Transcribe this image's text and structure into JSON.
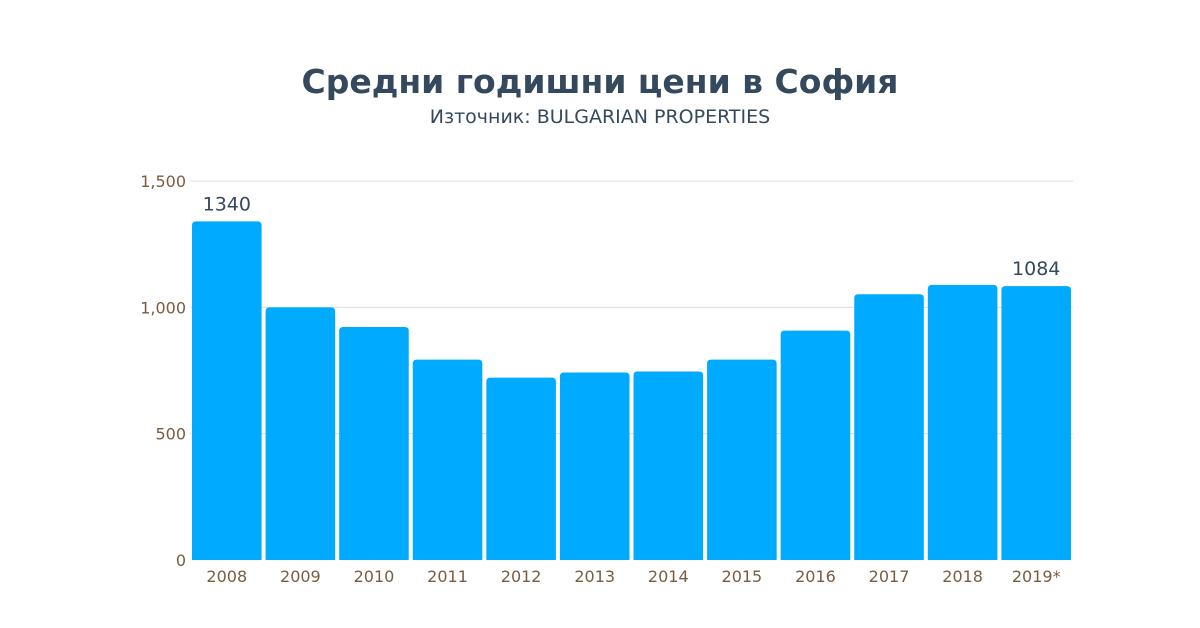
{
  "chart_data": {
    "type": "bar",
    "title": "Средни годишни цени в София",
    "subtitle": "Източник: BULGARIAN PROPERTIES",
    "categories": [
      "2008",
      "2009",
      "2010",
      "2011",
      "2012",
      "2013",
      "2014",
      "2015",
      "2016",
      "2017",
      "2018",
      "2019*"
    ],
    "values": [
      1340,
      1000,
      922,
      793,
      722,
      742,
      746,
      793,
      908,
      1052,
      1089,
      1084
    ],
    "data_labels": {
      "0": "1340",
      "11": "1084"
    },
    "ylim": [
      0,
      1500
    ],
    "yticks": [
      0,
      500,
      1000,
      1500
    ],
    "ytick_labels": [
      "0",
      "500",
      "1,000",
      "1,500"
    ],
    "xlabel": "",
    "ylabel": "",
    "grid": true,
    "bar_color": "#00aaff"
  }
}
